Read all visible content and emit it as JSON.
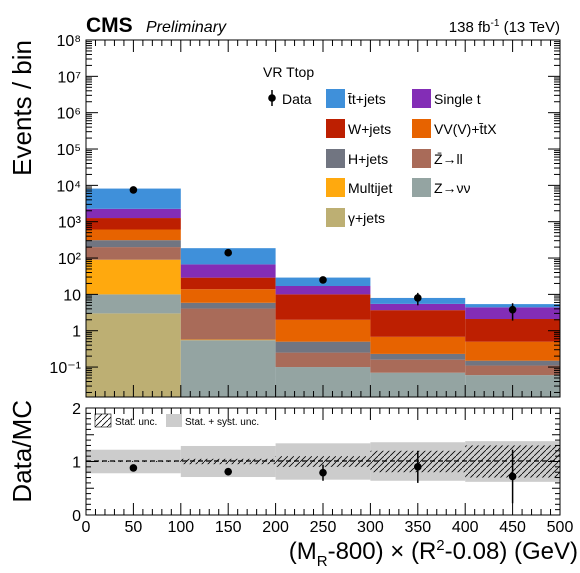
{
  "header": {
    "experiment": "CMS",
    "status": "Preliminary",
    "lumi_text": "138 fb",
    "lumi_exp": "-1",
    "energy": "(13 TeV)"
  },
  "chart_data": [
    {
      "type": "bar",
      "stacked": true,
      "log_y": true,
      "title": "VR Ttop",
      "ylabel": "Events / bin",
      "xlim": [
        0,
        500
      ],
      "ylim": [
        0.015,
        100000000
      ],
      "bin_edges": [
        0,
        100,
        200,
        300,
        400,
        500
      ],
      "y_tick_labels": [
        "10⁻¹",
        "1",
        "10",
        "10²",
        "10³",
        "10⁴",
        "10⁵",
        "10⁶",
        "10⁷",
        "10⁸"
      ],
      "legend_position": "top-center",
      "series": [
        {
          "name": "γ+jets",
          "color": "#bdaf73",
          "values": [
            3,
            0,
            0,
            0,
            0
          ]
        },
        {
          "name": "Z→νν",
          "color": "#94a4a2",
          "values": [
            7,
            0.55,
            0.1,
            0.07,
            0.06
          ]
        },
        {
          "name": "Multijet",
          "color": "#ffa90e",
          "values": [
            80,
            0.02,
            0,
            0,
            0
          ]
        },
        {
          "name": "Z̄→ll",
          "color": "#a96b59",
          "values": [
            110,
            3.5,
            0.15,
            0.09,
            0.05
          ]
        },
        {
          "name": "H+jets",
          "color": "#717581",
          "values": [
            110,
            1.8,
            0.25,
            0.07,
            0.04
          ]
        },
        {
          "name": "VV(V)+t̄tX",
          "color": "#e76300",
          "values": [
            300,
            8,
            1.5,
            0.45,
            0.35
          ]
        },
        {
          "name": "W+jets",
          "color": "#bd1f01",
          "values": [
            650,
            15,
            8,
            3,
            1.6
          ]
        },
        {
          "name": "Single t",
          "color": "#832db6",
          "values": [
            1000,
            38,
            7,
            1.8,
            2.3
          ]
        },
        {
          "name": "t̄t+jets",
          "color": "#3f90da",
          "values": [
            5900,
            120,
            12,
            2.5,
            1.0
          ]
        }
      ],
      "data": {
        "name": "Data",
        "x": [
          50,
          150,
          250,
          350,
          450
        ],
        "y": [
          7500,
          140,
          25,
          8,
          3.8
        ],
        "yerr": [
          90,
          12,
          5,
          3,
          1.9
        ]
      }
    },
    {
      "type": "scatter",
      "ylabel": "Data/MC",
      "xlabel": "(M_R-800) × (R²-0.08) (GeV)",
      "xlim": [
        0,
        500
      ],
      "ylim": [
        0,
        2
      ],
      "x_tick_labels": [
        "0",
        "50",
        "100",
        "150",
        "200",
        "250",
        "300",
        "350",
        "400",
        "450",
        "500"
      ],
      "y_tick_labels": [
        "0",
        "1",
        "2"
      ],
      "legend": [
        "Stat. unc.",
        "Stat. + syst. unc."
      ],
      "legend_position": "top-left",
      "x": [
        50,
        150,
        250,
        350,
        450
      ],
      "y": [
        0.88,
        0.81,
        0.79,
        0.9,
        0.72
      ],
      "yerr": [
        0.02,
        0.07,
        0.15,
        0.3,
        0.5
      ],
      "stat_unc": [
        0.01,
        0.05,
        0.1,
        0.2,
        0.3
      ],
      "stat_syst_unc": [
        0.22,
        0.29,
        0.34,
        0.36,
        0.38
      ]
    }
  ]
}
